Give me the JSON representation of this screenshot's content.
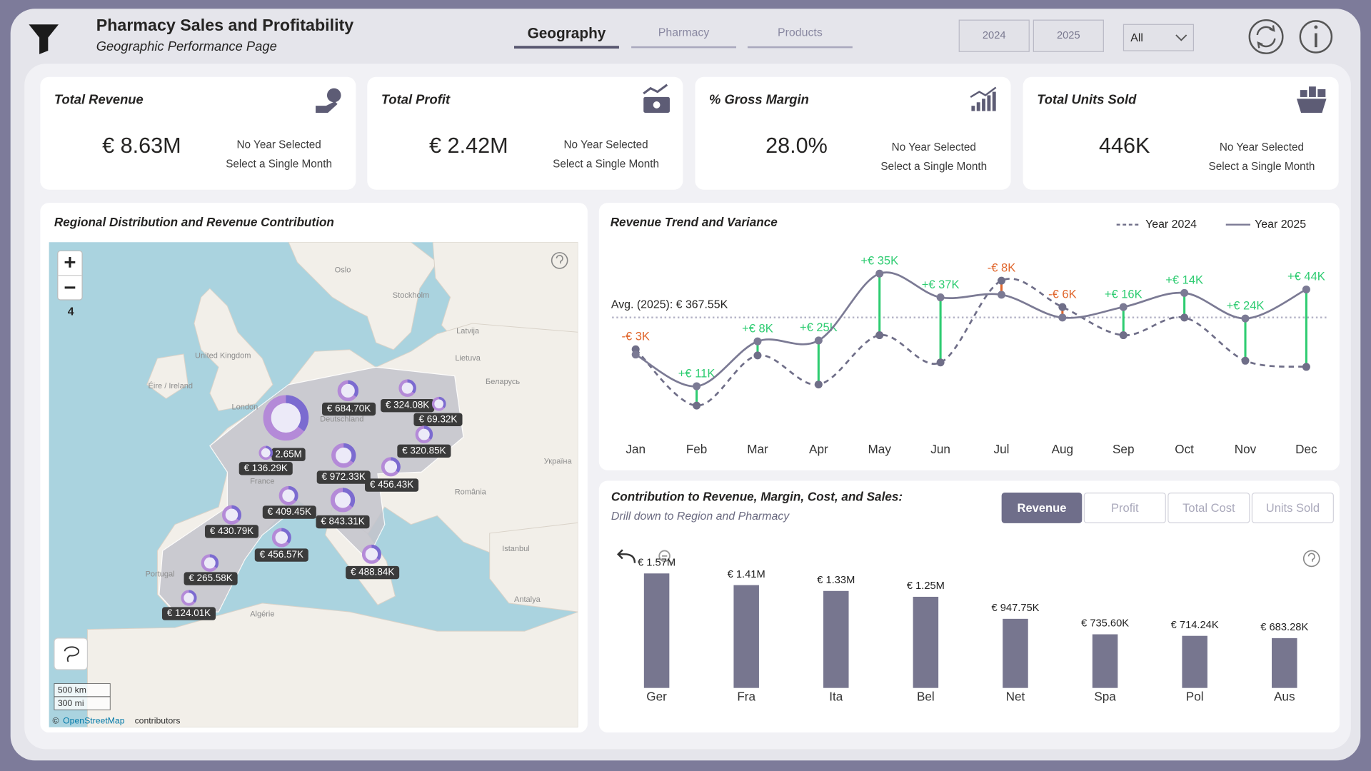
{
  "header": {
    "title": "Pharmacy Sales and Profitability",
    "subtitle": "Geographic Performance Page",
    "tabs": [
      "Geography",
      "Pharmacy",
      "Products"
    ],
    "year_buttons": [
      "2024",
      "2025"
    ],
    "dropdown": "All"
  },
  "kpis": [
    {
      "title": "Total Revenue",
      "value": "€ 8.63M",
      "notes": [
        "No Year Selected",
        "Select a Single Month"
      ]
    },
    {
      "title": "Total Profit",
      "value": "€ 2.42M",
      "notes": [
        "No Year Selected",
        "Select a Single Month"
      ]
    },
    {
      "title": "% Gross Margin",
      "value": "28.0%",
      "notes": [
        "No Year Selected",
        "Select a Single Month"
      ]
    },
    {
      "title": "Total Units Sold",
      "value": "446K",
      "notes": [
        "No Year Selected",
        "Select a Single Month"
      ]
    }
  ],
  "map": {
    "title": "Regional Distribution and Revenue Contribution",
    "zoom_level": "4",
    "scale": [
      "500 km",
      "300 mi"
    ],
    "attribution": [
      "©",
      "OpenStreetMap",
      "contributors"
    ],
    "places": [
      "Oslo",
      "Stockholm",
      "Latvija",
      "Lietuva",
      "United Kingdom",
      "Éire / Ireland",
      "London",
      "Deutschland",
      "France",
      "Беларусь",
      "Україна",
      "România",
      "Portugal",
      "Algérie",
      "Istanbul",
      "Antalya"
    ],
    "bubble_labels": [
      "2.65M",
      "€ 684.70K",
      "€ 324.08K",
      "€ 69.32K",
      "€ 320.85K",
      "€ 136.29K",
      "€ 972.33K",
      "€ 456.43K",
      "€ 409.45K",
      "€ 843.31K",
      "€ 430.79K",
      "€ 456.57K",
      "€ 265.58K",
      "€ 488.84K",
      "€ 124.01K"
    ]
  },
  "chart_data": [
    {
      "type": "line",
      "title": "Revenue Trend and Variance",
      "categories": [
        "Jan",
        "Feb",
        "Mar",
        "Apr",
        "May",
        "Jun",
        "Jul",
        "Aug",
        "Sep",
        "Oct",
        "Nov",
        "Dec"
      ],
      "series": [
        {
          "name": "Year 2024",
          "color": "#6f6e88",
          "style": "dashed",
          "values": [
            349.5,
            317.5,
            346,
            329.5,
            357.5,
            342,
            388.5,
            373.5,
            357.5,
            367.5,
            343,
            339.5
          ]
        },
        {
          "name": "Year 2025",
          "color": "#7b7a94",
          "style": "solid",
          "values": [
            346.5,
            328.5,
            354,
            354.5,
            392.5,
            379,
            380.5,
            367.5,
            373.5,
            381.5,
            367,
            383.5
          ]
        }
      ],
      "average": {
        "label": "Avg. (2025): € 367.55K",
        "value": 367.55
      },
      "variance": {
        "values": [
          -3,
          11,
          8,
          25,
          35,
          37,
          -8,
          -6,
          16,
          14,
          24,
          44
        ],
        "value_labels": [
          "-€ 3K",
          "+€ 11K",
          "+€ 8K",
          "+€ 25K",
          "+€ 35K",
          "+€ 37K",
          "-€ 8K",
          "-€ 6K",
          "+€ 16K",
          "+€ 14K",
          "+€ 24K",
          "+€ 44K"
        ],
        "positive_color": "#2ecc71",
        "negative_color": "#e0662c"
      }
    },
    {
      "type": "bar",
      "title": "Contribution to Revenue, Margin, Cost, and Sales:",
      "subtitle": "Drill down to Region and Pharmacy",
      "buttons": [
        "Revenue",
        "Profit",
        "Total Cost",
        "Units Sold"
      ],
      "selected": "Revenue",
      "categories": [
        "Ger",
        "Fra",
        "Ita",
        "Bel",
        "Net",
        "Spa",
        "Pol",
        "Aus"
      ],
      "values": [
        1570000,
        1410000,
        1330000,
        1250000,
        947750,
        735600,
        714240,
        683280
      ],
      "value_labels": [
        "€ 1.57M",
        "€ 1.41M",
        "€ 1.33M",
        "€ 1.25M",
        "€ 947.75K",
        "€ 735.60K",
        "€ 714.24K",
        "€ 683.28K"
      ],
      "color": "#77768f"
    }
  ]
}
